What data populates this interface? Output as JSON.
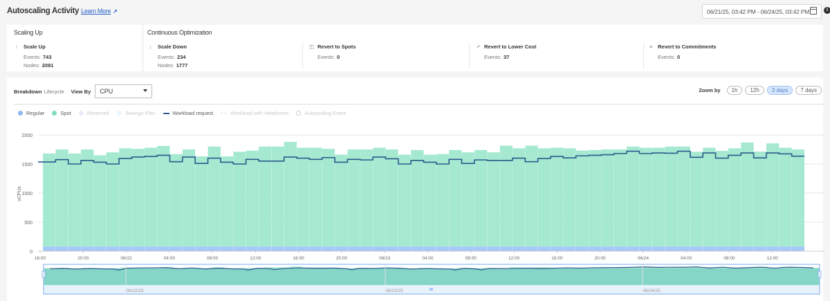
{
  "header": {
    "title": "Autoscaling Activity",
    "learn_more": "Learn More",
    "date_range": "06/21/25, 03:42 PM - 06/24/25, 03:42 PM"
  },
  "summary": {
    "scaling_up": {
      "title": "Scaling Up",
      "scale_up": {
        "label": "Scale Up",
        "events_label": "Events:",
        "events": "743",
        "nodes_label": "Nodes:",
        "nodes": "2081"
      }
    },
    "continuous": {
      "title": "Continuous Optimization",
      "scale_down": {
        "label": "Scale Down",
        "events_label": "Events:",
        "events": "234",
        "nodes_label": "Nodes:",
        "nodes": "1777"
      },
      "revert_spots": {
        "label": "Revert to Spots",
        "events_label": "Events:",
        "events": "0"
      },
      "revert_lower": {
        "label": "Revert to Lower Cost",
        "events_label": "Events:",
        "events": "37"
      },
      "revert_commit": {
        "label": "Revert to Commitments",
        "events_label": "Events:",
        "events": "0"
      }
    }
  },
  "controls": {
    "breakdown_label": "Breakdown",
    "breakdown_value": "Lifecycle",
    "view_by_label": "View By",
    "view_by_value": "CPU",
    "zoom_label": "Zoom by",
    "zoom_options": [
      "1h",
      "12h",
      "3 days",
      "7 days"
    ],
    "zoom_active": "3 days"
  },
  "legend": [
    {
      "label": "Regular",
      "kind": "dot",
      "color": "#8db9f2",
      "active": true
    },
    {
      "label": "Spot",
      "kind": "dot",
      "color": "#7fdcb8",
      "active": true
    },
    {
      "label": "Reserved",
      "kind": "dot",
      "color": "#ece8f8",
      "active": false
    },
    {
      "label": "Savings Plan",
      "kind": "dot",
      "color": "#eaf6fc",
      "active": false
    },
    {
      "label": "Workload request",
      "kind": "line",
      "color": "#2c5a8c",
      "active": true
    },
    {
      "label": "Workload with Headroom",
      "kind": "dash",
      "color": "#c8d4e2",
      "active": false
    },
    {
      "label": "Autoscaling Event",
      "kind": "ring",
      "color": "#cccccc",
      "active": false
    }
  ],
  "chart_data": {
    "type": "bar",
    "stacked": true,
    "ylabel": "vCPUs",
    "ylim": [
      0,
      2000
    ],
    "yticks": [
      0,
      500,
      1000,
      1500,
      2000
    ],
    "grid": true,
    "x_range": [
      "06/21/25 15:42",
      "06/24/25 15:42"
    ],
    "xticks": [
      "16:00",
      "20:00",
      "06/22",
      "04:00",
      "08:00",
      "12:00",
      "16:00",
      "20:00",
      "06/23",
      "04:00",
      "08:00",
      "12:00",
      "16:00",
      "20:00",
      "06/24",
      "04:00",
      "08:00",
      "12:00"
    ],
    "colors": {
      "regular": "#a5c8f7",
      "spot": "#a4e9d0",
      "workload": "#2c5a8c"
    },
    "series": [
      {
        "name": "Regular",
        "values": [
          80,
          80,
          80,
          80,
          80,
          80,
          80,
          80,
          80,
          80,
          80,
          80,
          80,
          80,
          80,
          80,
          80,
          80,
          80,
          80,
          80,
          80,
          80,
          80,
          80,
          80,
          80,
          80,
          80,
          80,
          80,
          80,
          80,
          80,
          80,
          80,
          80,
          80,
          80,
          80,
          80,
          80,
          80,
          80,
          80,
          80,
          80,
          80,
          80,
          80,
          80,
          80,
          80,
          80,
          80,
          80,
          80,
          80,
          80,
          80
        ]
      },
      {
        "name": "Spot",
        "values": [
          1600,
          1670,
          1600,
          1670,
          1570,
          1620,
          1690,
          1680,
          1700,
          1730,
          1590,
          1670,
          1550,
          1720,
          1550,
          1630,
          1650,
          1720,
          1720,
          1800,
          1700,
          1700,
          1680,
          1580,
          1670,
          1670,
          1700,
          1670,
          1580,
          1660,
          1580,
          1590,
          1660,
          1620,
          1660,
          1620,
          1735,
          1690,
          1735,
          1690,
          1700,
          1690,
          1650,
          1660,
          1670,
          1670,
          1720,
          1700,
          1700,
          1720,
          1720,
          1630,
          1700,
          1645,
          1690,
          1790,
          1635,
          1775,
          1700,
          1670
        ]
      },
      {
        "name": "Workload request",
        "type": "step-line",
        "values": [
          1535,
          1575,
          1500,
          1560,
          1530,
          1500,
          1595,
          1620,
          1630,
          1650,
          1540,
          1620,
          1510,
          1600,
          1530,
          1500,
          1580,
          1550,
          1550,
          1620,
          1600,
          1580,
          1610,
          1530,
          1580,
          1570,
          1620,
          1590,
          1500,
          1560,
          1530,
          1500,
          1580,
          1510,
          1570,
          1560,
          1560,
          1600,
          1540,
          1595,
          1630,
          1605,
          1640,
          1650,
          1660,
          1680,
          1720,
          1680,
          1690,
          1685,
          1720,
          1615,
          1690,
          1600,
          1650,
          1690,
          1605,
          1690,
          1675,
          1635
        ]
      }
    ],
    "navigator": {
      "labels": [
        "06/22/25",
        "06/23/25",
        "06/24/25"
      ]
    }
  }
}
